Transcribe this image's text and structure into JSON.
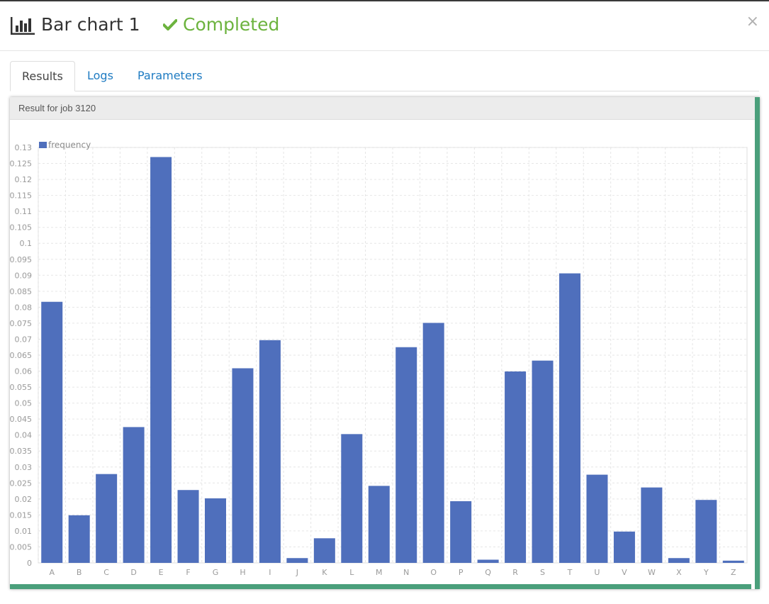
{
  "header": {
    "title": "Bar chart 1",
    "status": "Completed",
    "status_color": "#6cb33e",
    "icon": "bar-chart-icon",
    "close_label": "×"
  },
  "tabs": [
    {
      "label": "Results",
      "active": true
    },
    {
      "label": "Logs",
      "active": false
    },
    {
      "label": "Parameters",
      "active": false
    }
  ],
  "panel": {
    "title": "Result for job 3120",
    "accent_color": "#4a9f7b"
  },
  "chart_data": {
    "type": "bar",
    "legend": "frequency",
    "legend_position": "top-left",
    "bar_color": "#4f6fbc",
    "grid": true,
    "ylim": [
      0,
      0.13
    ],
    "yticks": [
      "0",
      "0.005",
      "0.01",
      "0.015",
      "0.02",
      "0.025",
      "0.03",
      "0.035",
      "0.04",
      "0.045",
      "0.05",
      "0.055",
      "0.06",
      "0.065",
      "0.07",
      "0.075",
      "0.08",
      "0.085",
      "0.09",
      "0.095",
      "0.1",
      "0.105",
      "0.11",
      "0.115",
      "0.12",
      "0.125",
      "0.13"
    ],
    "categories": [
      "A",
      "B",
      "C",
      "D",
      "E",
      "F",
      "G",
      "H",
      "I",
      "J",
      "K",
      "L",
      "M",
      "N",
      "O",
      "P",
      "Q",
      "R",
      "S",
      "T",
      "U",
      "V",
      "W",
      "X",
      "Y",
      "Z"
    ],
    "values": [
      0.0817,
      0.0149,
      0.0278,
      0.0425,
      0.127,
      0.0228,
      0.0202,
      0.0609,
      0.0697,
      0.0015,
      0.0077,
      0.0403,
      0.0241,
      0.0675,
      0.0751,
      0.0193,
      0.001,
      0.0599,
      0.0633,
      0.0906,
      0.0276,
      0.0098,
      0.0236,
      0.0015,
      0.0197,
      0.0007
    ],
    "title": "",
    "xlabel": "",
    "ylabel": ""
  }
}
